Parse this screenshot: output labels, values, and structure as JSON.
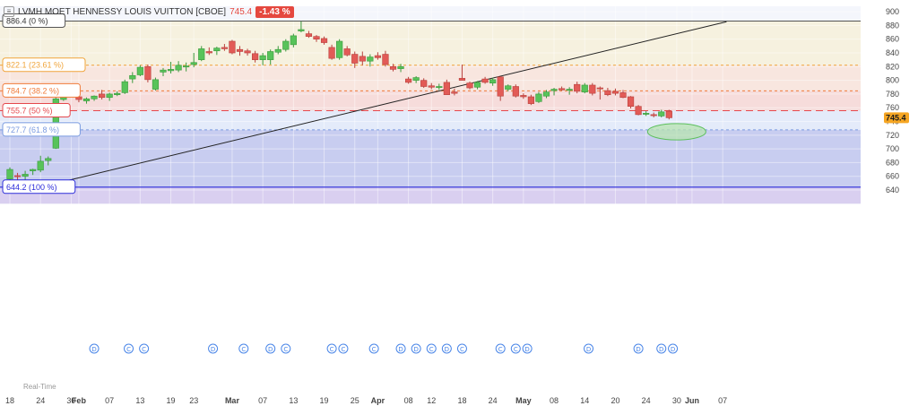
{
  "header": {
    "title": "LVMH MOET HENNESSY LOUIS VUITTON [CBOE]",
    "last": "745.4",
    "change": "-1.43 %"
  },
  "footer_label": "Real-Time",
  "chart_data": {
    "type": "candlestick",
    "ylim": [
      620,
      908
    ],
    "yticks": [
      640,
      660,
      680,
      700,
      720,
      740,
      760,
      780,
      800,
      820,
      840,
      860,
      880,
      900
    ],
    "xlabels": [
      {
        "label": "18",
        "x": 0
      },
      {
        "label": "24",
        "x": 4
      },
      {
        "label": "30",
        "x": 8
      },
      {
        "label": "Feb",
        "x": 9
      },
      {
        "label": "07",
        "x": 13
      },
      {
        "label": "13",
        "x": 17
      },
      {
        "label": "19",
        "x": 21
      },
      {
        "label": "23",
        "x": 24
      },
      {
        "label": "Mar",
        "x": 29
      },
      {
        "label": "07",
        "x": 33
      },
      {
        "label": "13",
        "x": 37
      },
      {
        "label": "19",
        "x": 41
      },
      {
        "label": "25",
        "x": 45
      },
      {
        "label": "Apr",
        "x": 48
      },
      {
        "label": "08",
        "x": 52
      },
      {
        "label": "12",
        "x": 55
      },
      {
        "label": "18",
        "x": 59
      },
      {
        "label": "24",
        "x": 63
      },
      {
        "label": "May",
        "x": 67
      },
      {
        "label": "08",
        "x": 71
      },
      {
        "label": "14",
        "x": 75
      },
      {
        "label": "20",
        "x": 79
      },
      {
        "label": "24",
        "x": 83
      },
      {
        "label": "30",
        "x": 87
      },
      {
        "label": "Jun",
        "x": 89
      },
      {
        "label": "07",
        "x": 93
      }
    ],
    "fib_levels": [
      {
        "label": "886.4 (0 %)",
        "value": 886.4,
        "color": "#555555"
      },
      {
        "label": "822.1 (23.61 %)",
        "value": 822.1,
        "color": "#f0a43a"
      },
      {
        "label": "784.7 (38.2 %)",
        "value": 784.7,
        "color": "#f07b3a"
      },
      {
        "label": "755.7 (50 %)",
        "value": 755.7,
        "color": "#e5484d"
      },
      {
        "label": "727.7 (61.8 %)",
        "value": 727.7,
        "color": "#7a9be0"
      },
      {
        "label": "644.2 (100 %)",
        "value": 644.2,
        "color": "#2b2bd9"
      }
    ],
    "trendline": {
      "x1": 5.0,
      "y1": 647,
      "x2": 93.5,
      "y2": 885.5
    },
    "ellipse": {
      "x": 87,
      "y": 725,
      "rx": 3.8,
      "ry": 12
    },
    "last_price": "745.4",
    "event_markers": [
      {
        "x": 11,
        "glyph": "D"
      },
      {
        "x": 15.5,
        "glyph": "C"
      },
      {
        "x": 17.5,
        "glyph": "C"
      },
      {
        "x": 26.5,
        "glyph": "D"
      },
      {
        "x": 30.5,
        "glyph": "C"
      },
      {
        "x": 34,
        "glyph": "D"
      },
      {
        "x": 36,
        "glyph": "C"
      },
      {
        "x": 42,
        "glyph": "C"
      },
      {
        "x": 43.5,
        "glyph": "C"
      },
      {
        "x": 47.5,
        "glyph": "C"
      },
      {
        "x": 51,
        "glyph": "D"
      },
      {
        "x": 53,
        "glyph": "D"
      },
      {
        "x": 55,
        "glyph": "C"
      },
      {
        "x": 57,
        "glyph": "D"
      },
      {
        "x": 59,
        "glyph": "C"
      },
      {
        "x": 64,
        "glyph": "C"
      },
      {
        "x": 66,
        "glyph": "C"
      },
      {
        "x": 67.5,
        "glyph": "D"
      },
      {
        "x": 75.5,
        "glyph": "D"
      },
      {
        "x": 82,
        "glyph": "D"
      },
      {
        "x": 85,
        "glyph": "D"
      },
      {
        "x": 86.5,
        "glyph": "D"
      }
    ],
    "candles": [
      {
        "x": 0,
        "o": 656,
        "h": 673,
        "l": 651,
        "c": 670
      },
      {
        "x": 1,
        "o": 661,
        "h": 665,
        "l": 653,
        "c": 660
      },
      {
        "x": 2,
        "o": 660,
        "h": 668,
        "l": 655,
        "c": 663
      },
      {
        "x": 3,
        "o": 668,
        "h": 671,
        "l": 662,
        "c": 670
      },
      {
        "x": 4,
        "o": 669,
        "h": 690,
        "l": 666,
        "c": 682
      },
      {
        "x": 5,
        "o": 683,
        "h": 689,
        "l": 676,
        "c": 686
      },
      {
        "x": 6,
        "o": 701,
        "h": 775,
        "l": 700,
        "c": 773
      },
      {
        "x": 7,
        "o": 772,
        "h": 784,
        "l": 770,
        "c": 779
      },
      {
        "x": 8,
        "o": 779,
        "h": 786,
        "l": 776,
        "c": 783
      },
      {
        "x": 9,
        "o": 776,
        "h": 781,
        "l": 768,
        "c": 772
      },
      {
        "x": 10,
        "o": 770,
        "h": 775,
        "l": 766,
        "c": 773
      },
      {
        "x": 11,
        "o": 773,
        "h": 778,
        "l": 770,
        "c": 777
      },
      {
        "x": 12,
        "o": 780,
        "h": 786,
        "l": 772,
        "c": 775
      },
      {
        "x": 13,
        "o": 775,
        "h": 782,
        "l": 770,
        "c": 780
      },
      {
        "x": 14,
        "o": 779,
        "h": 784,
        "l": 777,
        "c": 781
      },
      {
        "x": 15,
        "o": 782,
        "h": 801,
        "l": 780,
        "c": 798
      },
      {
        "x": 16,
        "o": 802,
        "h": 812,
        "l": 796,
        "c": 807
      },
      {
        "x": 17,
        "o": 808,
        "h": 822,
        "l": 806,
        "c": 819
      },
      {
        "x": 18,
        "o": 820,
        "h": 823,
        "l": 797,
        "c": 801
      },
      {
        "x": 19,
        "o": 787,
        "h": 804,
        "l": 785,
        "c": 801
      },
      {
        "x": 20,
        "o": 812,
        "h": 818,
        "l": 806,
        "c": 815
      },
      {
        "x": 21,
        "o": 814,
        "h": 827,
        "l": 810,
        "c": 816
      },
      {
        "x": 22,
        "o": 815,
        "h": 828,
        "l": 812,
        "c": 822
      },
      {
        "x": 23,
        "o": 820,
        "h": 826,
        "l": 813,
        "c": 821
      },
      {
        "x": 24,
        "o": 823,
        "h": 840,
        "l": 819,
        "c": 826
      },
      {
        "x": 25,
        "o": 830,
        "h": 850,
        "l": 828,
        "c": 846
      },
      {
        "x": 26,
        "o": 842,
        "h": 848,
        "l": 837,
        "c": 840
      },
      {
        "x": 27,
        "o": 843,
        "h": 849,
        "l": 837,
        "c": 847
      },
      {
        "x": 28,
        "o": 848,
        "h": 853,
        "l": 843,
        "c": 846
      },
      {
        "x": 29,
        "o": 857,
        "h": 859,
        "l": 838,
        "c": 840
      },
      {
        "x": 30,
        "o": 845,
        "h": 850,
        "l": 836,
        "c": 842
      },
      {
        "x": 31,
        "o": 843,
        "h": 846,
        "l": 836,
        "c": 840
      },
      {
        "x": 32,
        "o": 839,
        "h": 843,
        "l": 826,
        "c": 830
      },
      {
        "x": 33,
        "o": 830,
        "h": 840,
        "l": 822,
        "c": 836
      },
      {
        "x": 34,
        "o": 830,
        "h": 845,
        "l": 823,
        "c": 842
      },
      {
        "x": 35,
        "o": 841,
        "h": 850,
        "l": 838,
        "c": 845
      },
      {
        "x": 36,
        "o": 845,
        "h": 860,
        "l": 842,
        "c": 857
      },
      {
        "x": 37,
        "o": 852,
        "h": 868,
        "l": 848,
        "c": 865
      },
      {
        "x": 38,
        "o": 872,
        "h": 886,
        "l": 870,
        "c": 874
      },
      {
        "x": 39,
        "o": 868,
        "h": 872,
        "l": 862,
        "c": 864
      },
      {
        "x": 40,
        "o": 864,
        "h": 866,
        "l": 856,
        "c": 860
      },
      {
        "x": 41,
        "o": 861,
        "h": 864,
        "l": 852,
        "c": 855
      },
      {
        "x": 42,
        "o": 848,
        "h": 852,
        "l": 830,
        "c": 832
      },
      {
        "x": 43,
        "o": 833,
        "h": 860,
        "l": 830,
        "c": 857
      },
      {
        "x": 44,
        "o": 846,
        "h": 850,
        "l": 835,
        "c": 837
      },
      {
        "x": 45,
        "o": 838,
        "h": 842,
        "l": 818,
        "c": 825
      },
      {
        "x": 46,
        "o": 835,
        "h": 842,
        "l": 822,
        "c": 828
      },
      {
        "x": 47,
        "o": 828,
        "h": 838,
        "l": 820,
        "c": 834
      },
      {
        "x": 48,
        "o": 836,
        "h": 841,
        "l": 830,
        "c": 833
      },
      {
        "x": 49,
        "o": 838,
        "h": 843,
        "l": 820,
        "c": 823
      },
      {
        "x": 50,
        "o": 820,
        "h": 824,
        "l": 813,
        "c": 816
      },
      {
        "x": 51,
        "o": 817,
        "h": 824,
        "l": 812,
        "c": 820
      },
      {
        "x": 52,
        "o": 802,
        "h": 805,
        "l": 795,
        "c": 797
      },
      {
        "x": 53,
        "o": 800,
        "h": 806,
        "l": 796,
        "c": 804
      },
      {
        "x": 54,
        "o": 800,
        "h": 803,
        "l": 789,
        "c": 791
      },
      {
        "x": 55,
        "o": 792,
        "h": 796,
        "l": 787,
        "c": 790
      },
      {
        "x": 56,
        "o": 790,
        "h": 795,
        "l": 786,
        "c": 791
      },
      {
        "x": 57,
        "o": 797,
        "h": 801,
        "l": 779,
        "c": 779
      },
      {
        "x": 58,
        "o": 783,
        "h": 788,
        "l": 778,
        "c": 781
      },
      {
        "x": 59,
        "o": 803,
        "h": 823,
        "l": 800,
        "c": 800
      },
      {
        "x": 60,
        "o": 796,
        "h": 798,
        "l": 787,
        "c": 789
      },
      {
        "x": 61,
        "o": 790,
        "h": 799,
        "l": 787,
        "c": 797
      },
      {
        "x": 62,
        "o": 802,
        "h": 805,
        "l": 795,
        "c": 797
      },
      {
        "x": 63,
        "o": 796,
        "h": 804,
        "l": 792,
        "c": 801
      },
      {
        "x": 64,
        "o": 805,
        "h": 806,
        "l": 770,
        "c": 777
      },
      {
        "x": 65,
        "o": 787,
        "h": 794,
        "l": 784,
        "c": 792
      },
      {
        "x": 66,
        "o": 791,
        "h": 794,
        "l": 775,
        "c": 777
      },
      {
        "x": 67,
        "o": 778,
        "h": 781,
        "l": 773,
        "c": 776
      },
      {
        "x": 68,
        "o": 776,
        "h": 779,
        "l": 764,
        "c": 766
      },
      {
        "x": 69,
        "o": 769,
        "h": 783,
        "l": 767,
        "c": 780
      },
      {
        "x": 70,
        "o": 777,
        "h": 786,
        "l": 774,
        "c": 783
      },
      {
        "x": 71,
        "o": 785,
        "h": 789,
        "l": 778,
        "c": 787
      },
      {
        "x": 72,
        "o": 788,
        "h": 791,
        "l": 785,
        "c": 786
      },
      {
        "x": 73,
        "o": 786,
        "h": 790,
        "l": 779,
        "c": 787
      },
      {
        "x": 74,
        "o": 794,
        "h": 798,
        "l": 781,
        "c": 784
      },
      {
        "x": 75,
        "o": 783,
        "h": 796,
        "l": 781,
        "c": 793
      },
      {
        "x": 76,
        "o": 793,
        "h": 796,
        "l": 778,
        "c": 781
      },
      {
        "x": 77,
        "o": 789,
        "h": 791,
        "l": 772,
        "c": 788
      },
      {
        "x": 78,
        "o": 785,
        "h": 789,
        "l": 777,
        "c": 779
      },
      {
        "x": 79,
        "o": 784,
        "h": 788,
        "l": 778,
        "c": 781
      },
      {
        "x": 80,
        "o": 782,
        "h": 786,
        "l": 774,
        "c": 775
      },
      {
        "x": 81,
        "o": 776,
        "h": 777,
        "l": 759,
        "c": 762
      },
      {
        "x": 82,
        "o": 762,
        "h": 764,
        "l": 749,
        "c": 750
      },
      {
        "x": 83,
        "o": 751,
        "h": 755,
        "l": 748,
        "c": 752
      },
      {
        "x": 84,
        "o": 750,
        "h": 753,
        "l": 746,
        "c": 749
      },
      {
        "x": 85,
        "o": 748,
        "h": 757,
        "l": 746,
        "c": 754
      },
      {
        "x": 86,
        "o": 755,
        "h": 757,
        "l": 743,
        "c": 745.4
      }
    ]
  }
}
